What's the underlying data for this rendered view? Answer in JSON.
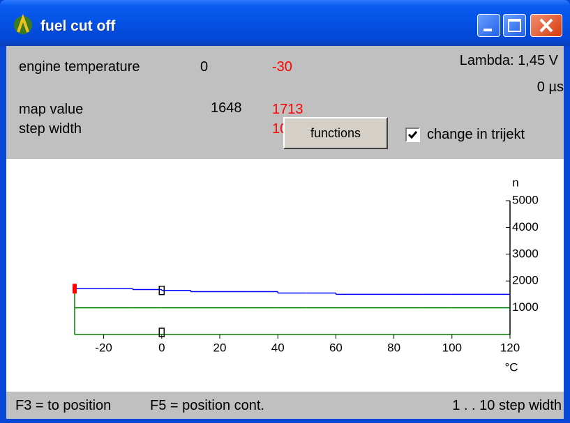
{
  "window": {
    "title": "fuel cut off"
  },
  "panel": {
    "engine_temperature": {
      "label": "engine temperature",
      "value": 0,
      "target": -30
    },
    "lambda": "Lambda: 1,45 V",
    "time": "0 µs",
    "map_value": {
      "label": "map value",
      "value": 1648,
      "target": 1713
    },
    "step_width": {
      "label": "step width",
      "target": 10
    },
    "button": "functions",
    "checkbox": {
      "label": "change in trijekt",
      "checked": true
    }
  },
  "chart_data": {
    "type": "line",
    "x": [
      -30,
      -20,
      -10,
      0,
      10,
      20,
      30,
      40,
      50,
      60,
      70,
      80,
      90,
      100,
      110,
      120
    ],
    "series": [
      {
        "color": "#0000ff",
        "step": true,
        "values": [
          1713,
          1713,
          1680,
          1648,
          1600,
          1600,
          1600,
          1550,
          1550,
          1500,
          1500,
          1500,
          1500,
          1500,
          1500,
          1500
        ]
      },
      {
        "color": "#008000",
        "step": true,
        "values": [
          1000,
          1000,
          1000,
          1000,
          1000,
          1000,
          1000,
          1000,
          1000,
          1000,
          1000,
          1000,
          1000,
          1000,
          1000,
          1000
        ]
      }
    ],
    "xlim": [
      -30,
      120
    ],
    "xticks": [
      -20,
      0,
      20,
      40,
      60,
      80,
      100,
      120
    ],
    "ylim": [
      0,
      5000
    ],
    "yticks": [
      1000,
      2000,
      3000,
      4000,
      5000
    ],
    "xlabel": "°C",
    "ylabel": "n"
  },
  "status": {
    "left_1": "F3 = to position",
    "left_2": "F5 = position cont.",
    "right": "1 . . 10 step width"
  }
}
